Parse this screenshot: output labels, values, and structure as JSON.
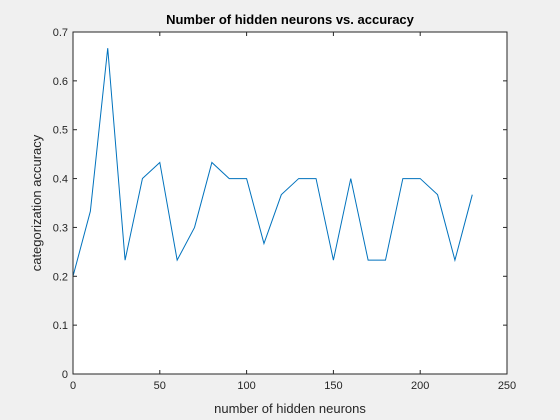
{
  "chart_data": {
    "type": "line",
    "title": "Number of hidden neurons vs. accuracy",
    "xlabel": "number of hidden neurons",
    "ylabel": "categorization accuracy",
    "xlim": [
      0,
      250
    ],
    "ylim": [
      0,
      0.7
    ],
    "xticks": [
      0,
      50,
      100,
      150,
      200,
      250
    ],
    "yticks": [
      0,
      0.1,
      0.2,
      0.3,
      0.4,
      0.5,
      0.6,
      0.7
    ],
    "grid": false,
    "series": [
      {
        "color": "#0072BD",
        "x": [
          0,
          10,
          20,
          30,
          40,
          50,
          60,
          70,
          80,
          90,
          100,
          110,
          120,
          130,
          140,
          150,
          160,
          170,
          180,
          190,
          200,
          210,
          220,
          230
        ],
        "y": [
          0.2,
          0.333,
          0.667,
          0.233,
          0.4,
          0.433,
          0.233,
          0.3,
          0.433,
          0.4,
          0.4,
          0.267,
          0.367,
          0.4,
          0.4,
          0.233,
          0.4,
          0.233,
          0.233,
          0.4,
          0.4,
          0.367,
          0.233,
          0.367
        ]
      },
      {
        "color": "#D95319",
        "x": [
          0,
          230
        ],
        "y": [
          0,
          0
        ]
      }
    ]
  }
}
